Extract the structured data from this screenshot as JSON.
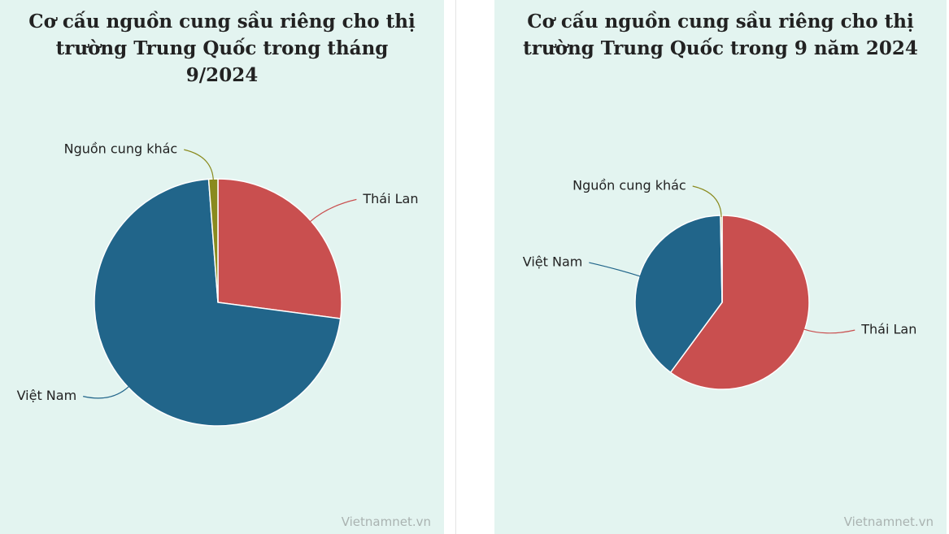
{
  "chart_data": [
    {
      "type": "pie",
      "title": "Cơ cấu nguồn cung sầu riêng cho thị trường Trung Quốc trong tháng 9/2024",
      "categories": [
        "Thái Lan",
        "Việt Nam",
        "Nguồn cung khác"
      ],
      "values": [
        27.1,
        71.7,
        1.2
      ],
      "colors": [
        "#c94f4f",
        "#21658a",
        "#8a8a1e"
      ],
      "source": "Vietnamnet.vn"
    },
    {
      "type": "pie",
      "title": "Cơ cấu nguồn cung sầu riêng cho thị trường Trung Quốc trong 9 năm 2024",
      "categories": [
        "Thái Lan",
        "Việt Nam",
        "Nguồn cung khác"
      ],
      "values": [
        60.1,
        39.6,
        0.3
      ],
      "colors": [
        "#c94f4f",
        "#21658a",
        "#8a8a1e"
      ],
      "source": "Vietnamnet.vn"
    }
  ]
}
